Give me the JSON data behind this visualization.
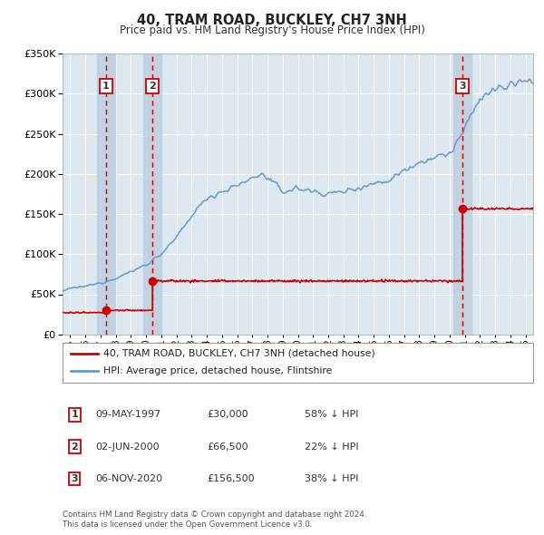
{
  "title": "40, TRAM ROAD, BUCKLEY, CH7 3NH",
  "subtitle": "Price paid vs. HM Land Registry's House Price Index (HPI)",
  "legend_line1": "40, TRAM ROAD, BUCKLEY, CH7 3NH (detached house)",
  "legend_line2": "HPI: Average price, detached house, Flintshire",
  "sales": [
    {
      "label": "1",
      "date_str": "09-MAY-1997",
      "year": 1997.36,
      "price": 30000
    },
    {
      "label": "2",
      "date_str": "02-JUN-2000",
      "year": 2000.42,
      "price": 66500
    },
    {
      "label": "3",
      "date_str": "06-NOV-2020",
      "year": 2020.84,
      "price": 156500
    }
  ],
  "table_rows": [
    {
      "num": "1",
      "date": "09-MAY-1997",
      "price": "£30,000",
      "hpi": "58% ↓ HPI"
    },
    {
      "num": "2",
      "date": "02-JUN-2000",
      "price": "£66,500",
      "hpi": "22% ↓ HPI"
    },
    {
      "num": "3",
      "date": "06-NOV-2020",
      "price": "£156,500",
      "hpi": "38% ↓ HPI"
    }
  ],
  "footer": "Contains HM Land Registry data © Crown copyright and database right 2024.\nThis data is licensed under the Open Government Licence v3.0.",
  "ylim": [
    0,
    350000
  ],
  "xlim_start": 1994.5,
  "xlim_end": 2025.5,
  "red_color": "#cc0000",
  "blue_color": "#6699cc",
  "bg_color": "#dde8f0",
  "grid_color": "#ffffff",
  "shade_color": "#c0d0e0"
}
